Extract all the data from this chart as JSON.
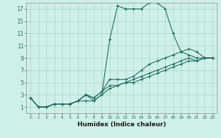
{
  "title": "",
  "xlabel": "Humidex (Indice chaleur)",
  "bg_color": "#cff0e8",
  "grid_color": "#a8d8cc",
  "line_color": "#1a6b60",
  "xlim": [
    -0.5,
    23.5
  ],
  "ylim": [
    0,
    18
  ],
  "xticks": [
    0,
    1,
    2,
    3,
    4,
    5,
    6,
    7,
    8,
    9,
    10,
    11,
    12,
    13,
    14,
    15,
    16,
    17,
    18,
    19,
    20,
    21,
    22,
    23
  ],
  "yticks": [
    1,
    3,
    5,
    7,
    9,
    11,
    13,
    15,
    17
  ],
  "series": [
    {
      "x": [
        0,
        1,
        2,
        3,
        4,
        5,
        6,
        7,
        8,
        9,
        10,
        11,
        12,
        13,
        14,
        15,
        16,
        17,
        18,
        19,
        20,
        21,
        22,
        23
      ],
      "y": [
        2.5,
        1,
        1,
        1.5,
        1.5,
        1.5,
        2,
        3,
        2,
        3,
        12,
        17.5,
        17,
        17,
        17,
        18,
        18,
        17,
        13,
        10,
        9.5,
        9,
        9,
        9
      ]
    },
    {
      "x": [
        0,
        1,
        2,
        3,
        4,
        5,
        6,
        7,
        8,
        9,
        10,
        11,
        12,
        13,
        14,
        15,
        16,
        17,
        18,
        19,
        20,
        21,
        22,
        23
      ],
      "y": [
        2.5,
        1,
        1,
        1.5,
        1.5,
        1.5,
        2,
        3,
        2.5,
        3.5,
        5.5,
        5.5,
        5.5,
        6,
        7,
        8,
        8.5,
        9,
        9.5,
        10,
        10.5,
        10,
        9,
        9
      ]
    },
    {
      "x": [
        0,
        1,
        2,
        3,
        4,
        5,
        6,
        7,
        8,
        9,
        10,
        11,
        12,
        13,
        14,
        15,
        16,
        17,
        18,
        19,
        20,
        21,
        22,
        23
      ],
      "y": [
        2.5,
        1,
        1,
        1.5,
        1.5,
        1.5,
        2,
        3,
        2.5,
        3.5,
        4.5,
        4.5,
        5,
        5,
        5.5,
        6,
        6.5,
        7,
        7.5,
        8,
        8.5,
        8.5,
        9,
        9
      ]
    },
    {
      "x": [
        0,
        1,
        2,
        3,
        4,
        5,
        6,
        7,
        8,
        9,
        10,
        11,
        12,
        13,
        14,
        15,
        16,
        17,
        18,
        19,
        20,
        21,
        22,
        23
      ],
      "y": [
        2.5,
        1,
        1,
        1.5,
        1.5,
        1.5,
        2,
        2,
        2,
        3,
        4,
        4.5,
        5,
        5.5,
        6,
        6.5,
        7,
        7.5,
        8,
        8.5,
        9,
        8.5,
        9,
        9
      ]
    }
  ]
}
